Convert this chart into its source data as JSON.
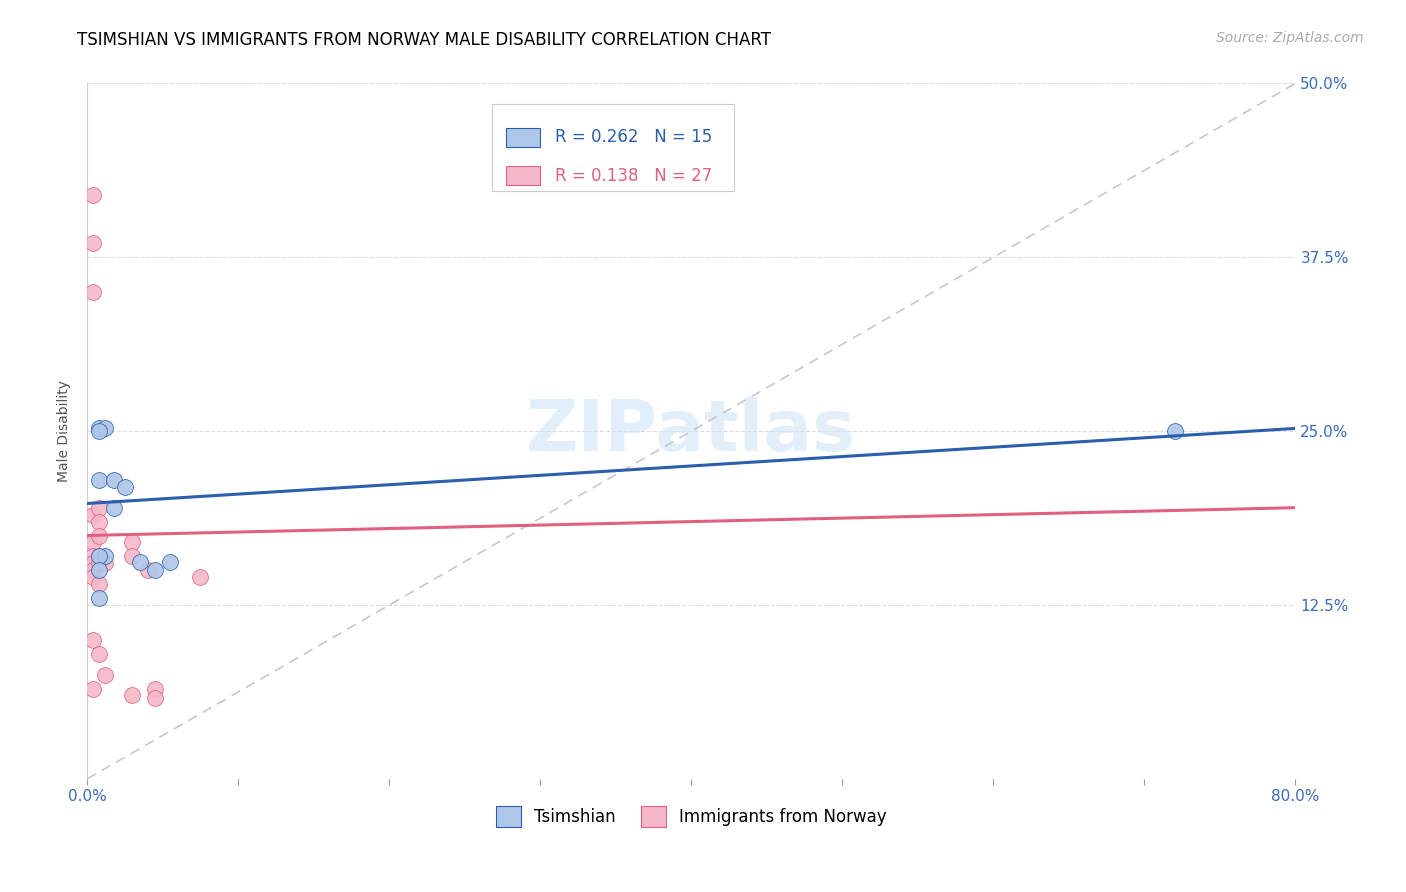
{
  "title": "TSIMSHIAN VS IMMIGRANTS FROM NORWAY MALE DISABILITY CORRELATION CHART",
  "source": "Source: ZipAtlas.com",
  "ylabel": "Male Disability",
  "xlabel": "",
  "xlim": [
    0.0,
    0.8
  ],
  "ylim": [
    0.0,
    0.5
  ],
  "xticks": [
    0.0,
    0.1,
    0.2,
    0.3,
    0.4,
    0.5,
    0.6,
    0.7,
    0.8
  ],
  "xticklabels": [
    "0.0%",
    "",
    "",
    "",
    "",
    "",
    "",
    "",
    "80.0%"
  ],
  "ytick_positions": [
    0.125,
    0.25,
    0.375,
    0.5
  ],
  "ytick_labels": [
    "12.5%",
    "25.0%",
    "37.5%",
    "50.0%"
  ],
  "R_tsimshian": 0.262,
  "N_tsimshian": 15,
  "R_norway": 0.138,
  "N_norway": 27,
  "color_tsimshian": "#aec6e8",
  "color_norway": "#f4b8c8",
  "trendline_tsimshian_color": "#2b5fad",
  "trendline_norway_color": "#e06080",
  "trendline_diag_color": "#c8c8c8",
  "watermark": "ZIPatlas",
  "tsimshian_x": [
    0.008,
    0.012,
    0.008,
    0.008,
    0.018,
    0.025,
    0.018,
    0.012,
    0.008,
    0.035,
    0.055,
    0.045,
    0.008,
    0.008,
    0.72
  ],
  "tsimshian_y": [
    0.252,
    0.252,
    0.215,
    0.25,
    0.215,
    0.21,
    0.195,
    0.16,
    0.16,
    0.156,
    0.156,
    0.15,
    0.15,
    0.13,
    0.25
  ],
  "norway_x": [
    0.004,
    0.004,
    0.004,
    0.004,
    0.004,
    0.004,
    0.004,
    0.004,
    0.004,
    0.004,
    0.004,
    0.008,
    0.008,
    0.008,
    0.008,
    0.008,
    0.008,
    0.008,
    0.012,
    0.012,
    0.03,
    0.03,
    0.04,
    0.045,
    0.045,
    0.075,
    0.03
  ],
  "norway_y": [
    0.42,
    0.385,
    0.35,
    0.19,
    0.17,
    0.16,
    0.155,
    0.15,
    0.145,
    0.1,
    0.065,
    0.195,
    0.185,
    0.175,
    0.16,
    0.155,
    0.14,
    0.09,
    0.075,
    0.155,
    0.17,
    0.16,
    0.15,
    0.065,
    0.058,
    0.145,
    0.06
  ],
  "legend_fontsize": 12,
  "title_fontsize": 12,
  "axis_label_fontsize": 10,
  "tick_fontsize": 11,
  "source_fontsize": 10,
  "trendline_norway_start_y": 0.175,
  "trendline_norway_end_y": 0.195,
  "trendline_tsimshian_start_y": 0.198,
  "trendline_tsimshian_end_y": 0.252
}
